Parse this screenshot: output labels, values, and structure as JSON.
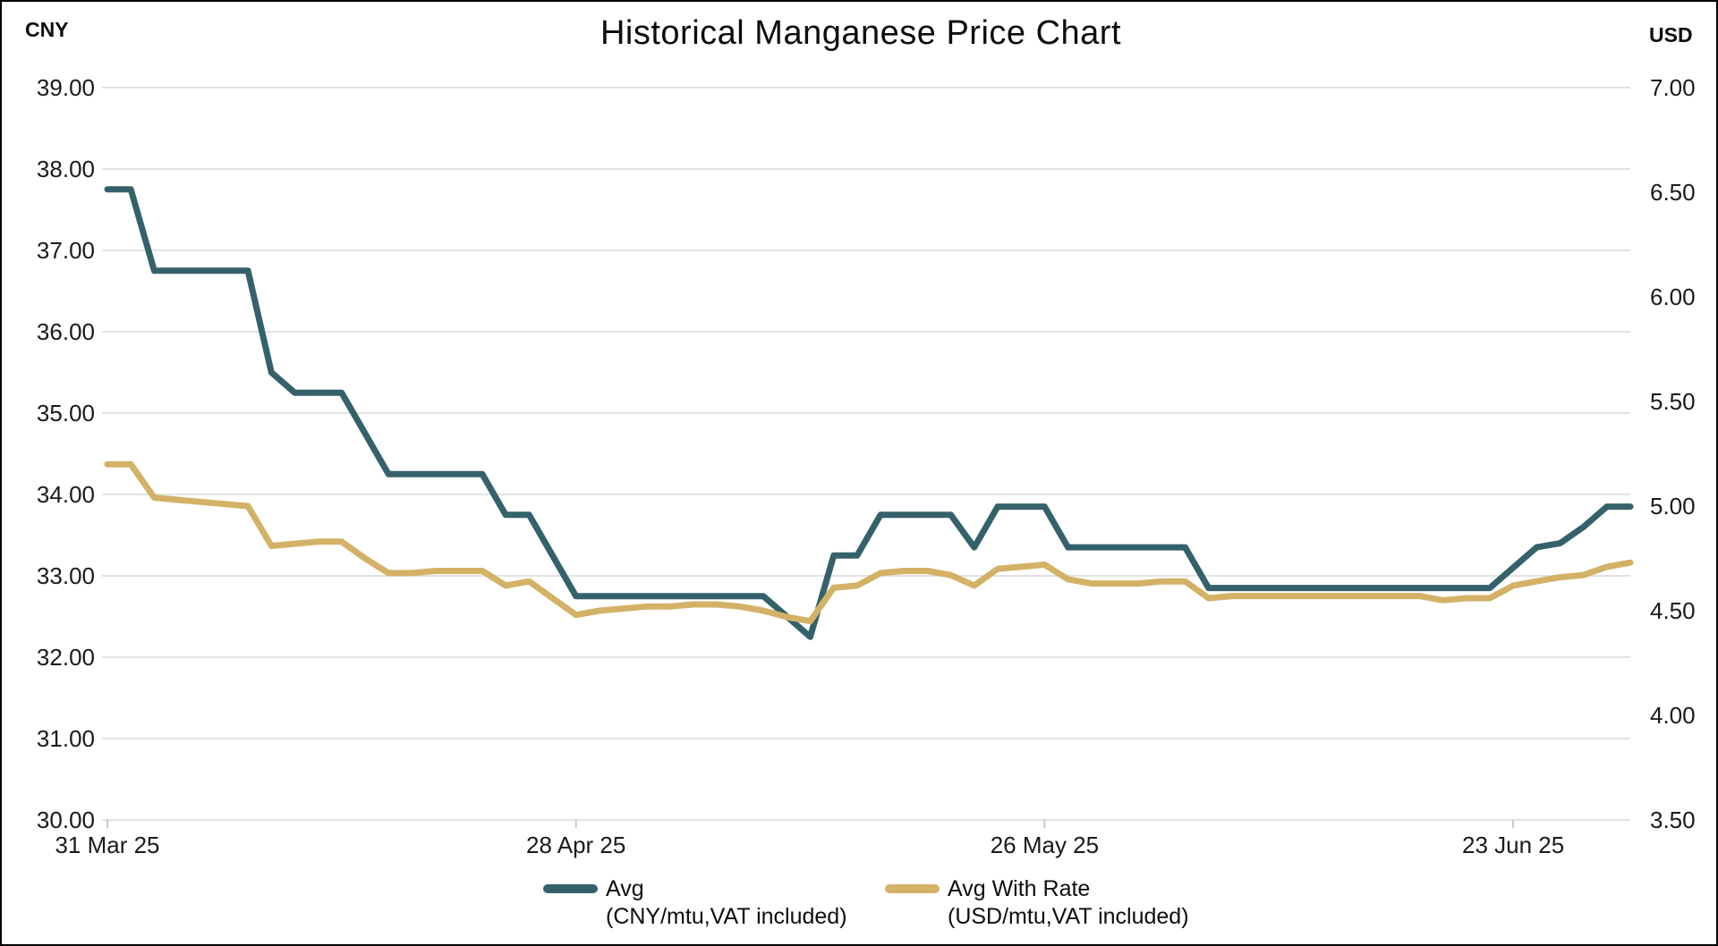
{
  "header": {
    "title": "Historical Manganese Price Chart"
  },
  "chart_data": {
    "type": "line",
    "title": "Historical Manganese Price Chart",
    "grid": "horizontal",
    "legend_position": "bottom",
    "x_axis": {
      "n_points": 66,
      "tick_days": [
        0,
        20,
        40,
        60
      ],
      "tick_labels": [
        "31 Mar 25",
        "28 Apr 25",
        "26 May 25",
        "23 Jun 25"
      ]
    },
    "left_axis": {
      "unit": "CNY",
      "min": 30,
      "max": 39,
      "tick_labels": [
        "39.00",
        "38.00",
        "37.00",
        "36.00",
        "35.00",
        "34.00",
        "33.00",
        "32.00",
        "31.00",
        "30.00"
      ]
    },
    "right_axis": {
      "unit": "USD",
      "min": 3.5,
      "max": 7.0,
      "tick_labels": [
        "7.00",
        "6.50",
        "6.00",
        "5.50",
        "5.00",
        "4.50",
        "4.00",
        "3.50"
      ]
    },
    "series": [
      {
        "name": "Avg",
        "note": "(CNY/mtu,VAT included)",
        "axis": "left",
        "color": "#35616b",
        "values": [
          37.75,
          37.75,
          36.75,
          36.75,
          36.75,
          36.75,
          36.75,
          35.5,
          35.25,
          35.25,
          35.25,
          34.75,
          34.25,
          34.25,
          34.25,
          34.25,
          34.25,
          33.75,
          33.75,
          33.25,
          32.75,
          32.75,
          32.75,
          32.75,
          32.75,
          32.75,
          32.75,
          32.75,
          32.75,
          32.5,
          32.25,
          33.25,
          33.25,
          33.75,
          33.75,
          33.75,
          33.75,
          33.35,
          33.85,
          33.85,
          33.85,
          33.35,
          33.35,
          33.35,
          33.35,
          33.35,
          33.35,
          32.85,
          32.85,
          32.85,
          32.85,
          32.85,
          32.85,
          32.85,
          32.85,
          32.85,
          32.85,
          32.85,
          32.85,
          32.85,
          33.1,
          33.35,
          33.4,
          33.6,
          33.85,
          33.85
        ]
      },
      {
        "name": "Avg With Rate",
        "note": "(USD/mtu,VAT included)",
        "axis": "right",
        "color": "#d3b166",
        "values": [
          5.2,
          5.2,
          5.04,
          5.03,
          5.02,
          5.01,
          5.0,
          4.81,
          4.82,
          4.83,
          4.83,
          4.75,
          4.68,
          4.68,
          4.69,
          4.69,
          4.69,
          4.62,
          4.64,
          4.56,
          4.48,
          4.5,
          4.51,
          4.52,
          4.52,
          4.53,
          4.53,
          4.52,
          4.5,
          4.47,
          4.45,
          4.61,
          4.62,
          4.68,
          4.69,
          4.69,
          4.67,
          4.62,
          4.7,
          4.71,
          4.72,
          4.65,
          4.63,
          4.63,
          4.63,
          4.64,
          4.64,
          4.56,
          4.57,
          4.57,
          4.57,
          4.57,
          4.57,
          4.57,
          4.57,
          4.57,
          4.57,
          4.55,
          4.56,
          4.56,
          4.62,
          4.64,
          4.66,
          4.67,
          4.71,
          4.73
        ]
      }
    ]
  }
}
